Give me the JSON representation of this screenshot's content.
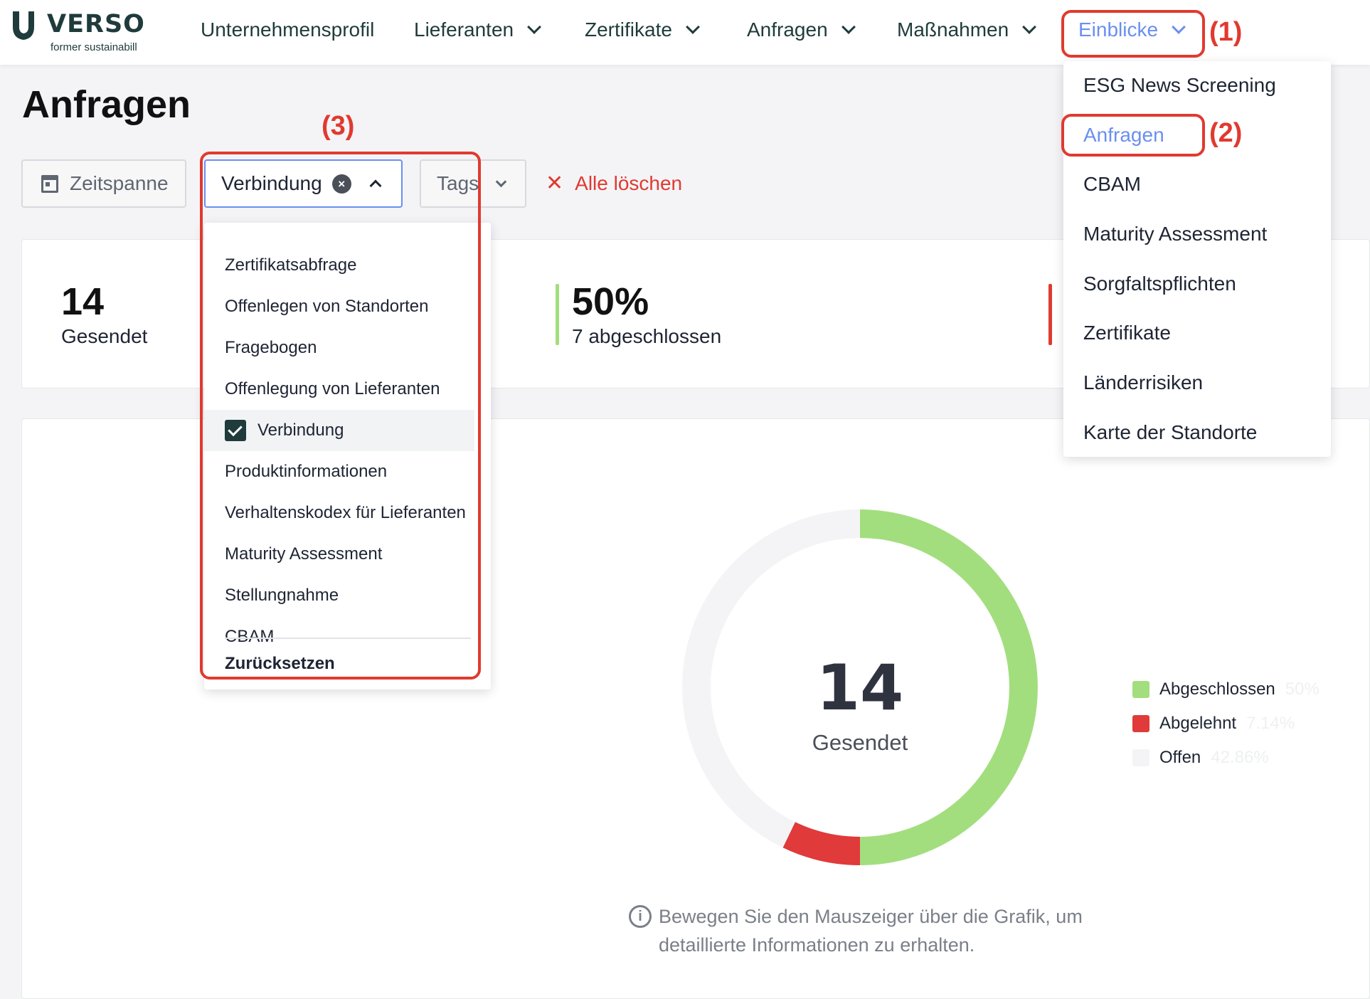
{
  "brand": {
    "name": "VERSO",
    "subtitle": "former sustainabill"
  },
  "nav": {
    "items": [
      {
        "label": "Unternehmensprofil"
      },
      {
        "label": "Lieferanten"
      },
      {
        "label": "Zertifikate"
      },
      {
        "label": "Anfragen"
      },
      {
        "label": "Maßnahmen"
      },
      {
        "label": "Einblicke"
      }
    ]
  },
  "page": {
    "title": "Anfragen"
  },
  "filters": {
    "zeitspanne": "Zeitspanne",
    "verbindung": "Verbindung",
    "tags": "Tags",
    "clear_all": "Alle löschen"
  },
  "stats": {
    "sent": {
      "value": "14",
      "label": "Gesendet"
    },
    "completed": {
      "value": "50%",
      "label": "7 abgeschlossen"
    }
  },
  "verbindung_menu": {
    "options": [
      {
        "label": "Zertifikatsabfrage",
        "checked": false
      },
      {
        "label": "Offenlegen von Standorten",
        "checked": false
      },
      {
        "label": "Fragebogen",
        "checked": false
      },
      {
        "label": "Offenlegung von Lieferanten",
        "checked": false
      },
      {
        "label": "Verbindung",
        "checked": true
      },
      {
        "label": "Produktinformationen",
        "checked": false
      },
      {
        "label": "Verhaltenskodex für Lieferanten",
        "checked": false
      },
      {
        "label": "Maturity Assessment",
        "checked": false
      },
      {
        "label": "Stellungnahme",
        "checked": false
      },
      {
        "label": "CBAM",
        "checked": false
      }
    ],
    "reset": "Zurücksetzen"
  },
  "einblicke_menu": {
    "options": [
      {
        "label": "ESG News Screening"
      },
      {
        "label": "Anfragen"
      },
      {
        "label": "CBAM"
      },
      {
        "label": "Maturity Assessment"
      },
      {
        "label": "Sorgfaltspflichten"
      },
      {
        "label": "Zertifikate"
      },
      {
        "label": "Länderrisiken"
      },
      {
        "label": "Karte der Standorte"
      }
    ]
  },
  "chart_data": {
    "type": "pie",
    "center_value": "14",
    "center_label": "Gesendet",
    "categories": [
      "Abgeschlossen",
      "Abgelehnt",
      "Offen"
    ],
    "values": [
      50,
      7.14,
      42.86
    ],
    "labels": [
      "50%",
      "7.14%",
      "42.86%"
    ],
    "colors": [
      "#a3de7e",
      "#e03a3a",
      "#f4f4f6"
    ],
    "legend": "right"
  },
  "hint": "Bewegen Sie den Mauszeiger über die Grafik, um detaillierte Informationen zu erhalten.",
  "annotations": [
    "(1)",
    "(2)",
    "(3)"
  ],
  "colors": {
    "accent": "#6a8ff0",
    "brand": "#1f3b3b",
    "annotation": "#e03a30",
    "danger": "#e03a30"
  }
}
